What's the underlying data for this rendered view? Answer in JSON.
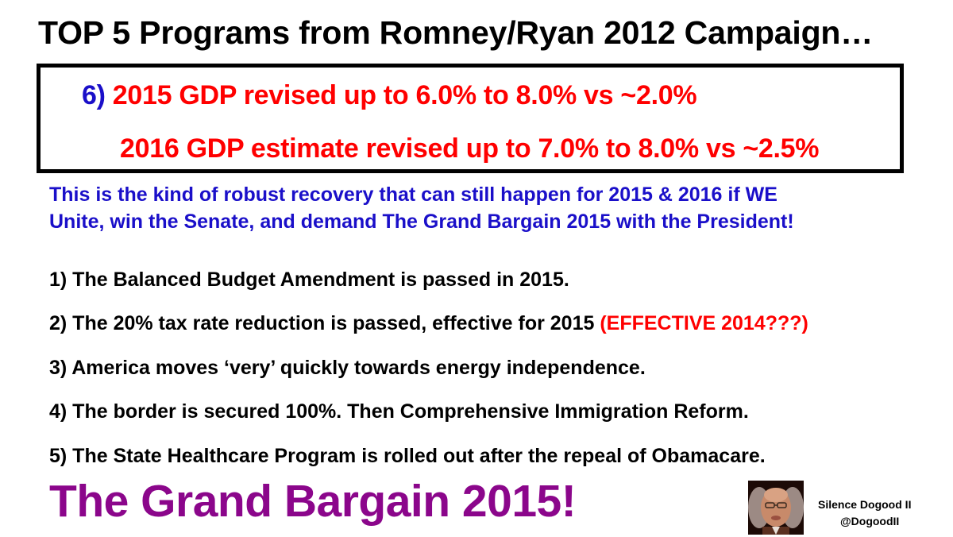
{
  "title": "TOP 5 Programs from Romney/Ryan 2012 Campaign…",
  "highlight_box": {
    "line1_number": "6)",
    "line1_text": "2015 GDP revised up to 6.0% to 8.0% vs ~2.0%",
    "line2_text": "2016 GDP estimate revised up to 7.0% to 8.0% vs ~2.5%"
  },
  "intro": {
    "line1": "This is the kind of robust recovery that can still happen for 2015 & 2016 if WE",
    "line2": "Unite, win the Senate, and demand The Grand Bargain 2015 with the President!"
  },
  "items": [
    {
      "text": "1) The Balanced Budget Amendment is passed in 2015."
    },
    {
      "text": "2) The 20% tax rate reduction is passed, effective for 2015",
      "note": "(EFFECTIVE 2014???)"
    },
    {
      "text": "3) America moves ‘very’ quickly towards energy independence."
    },
    {
      "text": "4) The border is secured 100%. Then Comprehensive Immigration Reform."
    },
    {
      "text": "5) The State Healthcare Program is rolled out after the repeal of Obamacare."
    }
  ],
  "slogan": "The Grand Bargain 2015!",
  "signature": {
    "name": "Silence Dogood II",
    "handle": "@DogoodII"
  },
  "colors": {
    "blue": "#1a0fc9",
    "red": "#ff0000",
    "purple": "#8b068b",
    "black": "#000000"
  }
}
